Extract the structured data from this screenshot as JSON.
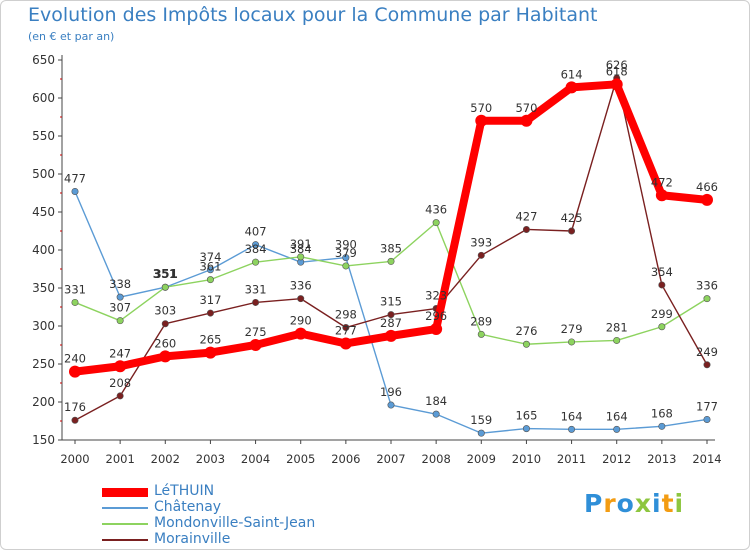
{
  "chart_data": {
    "type": "line",
    "title": "Evolution des Impôts locaux pour la Commune par Habitant",
    "subtitle": "(en € et par an)",
    "x": [
      "2000",
      "2001",
      "2002",
      "2003",
      "2004",
      "2005",
      "2006",
      "2007",
      "2008",
      "2009",
      "2010",
      "2011",
      "2012",
      "2013",
      "2014"
    ],
    "ylim": [
      150,
      650
    ],
    "yticks": [
      150,
      200,
      250,
      300,
      350,
      400,
      450,
      500,
      550,
      600,
      650
    ],
    "grid": false,
    "legend_position": "bottom-left",
    "series": [
      {
        "name": "LéTHUIN",
        "color": "#ff0000",
        "values": [
          240,
          247,
          260,
          265,
          275,
          290,
          277,
          287,
          296,
          570,
          570,
          614,
          618,
          472,
          466
        ]
      },
      {
        "name": "Châtenay",
        "color": "#5b9bd5",
        "values": [
          477,
          338,
          351,
          374,
          407,
          384,
          390,
          196,
          184,
          159,
          165,
          164,
          164,
          168,
          177
        ]
      },
      {
        "name": "Mondonville-Saint-Jean",
        "color": "#8dd35f",
        "values": [
          331,
          307,
          351,
          361,
          384,
          391,
          379,
          385,
          436,
          289,
          276,
          279,
          281,
          299,
          336
        ]
      },
      {
        "name": "Morainville",
        "color": "#7a2020",
        "values": [
          176,
          208,
          303,
          317,
          331,
          336,
          298,
          315,
          323,
          393,
          427,
          425,
          626,
          354,
          249
        ]
      }
    ]
  },
  "branding": {
    "logo_text": "Proxiti",
    "logo_colors": [
      "#2f8fd8",
      "#f39c12",
      "#2f8fd8",
      "#8dc63f",
      "#2f8fd8",
      "#f39c12",
      "#8dc63f"
    ]
  }
}
